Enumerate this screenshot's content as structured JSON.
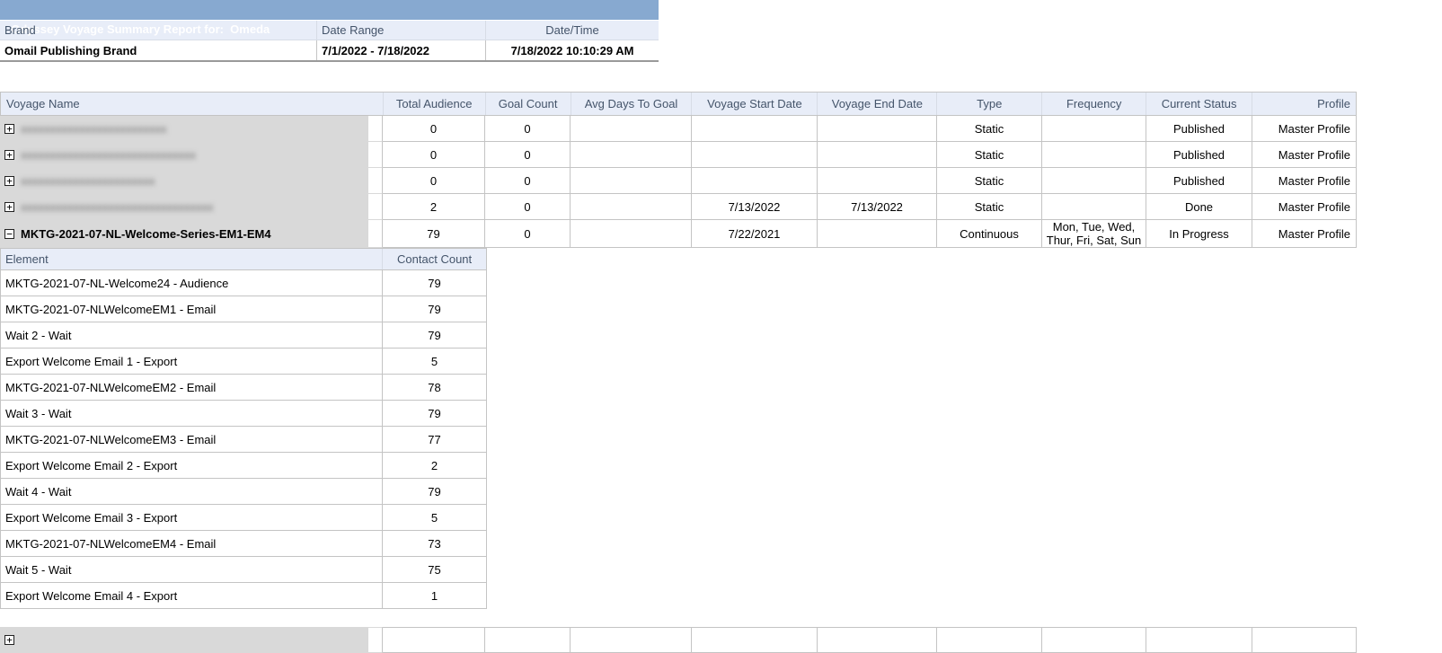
{
  "colors": {
    "title_bar": "#87A9D0",
    "header_background": "#E8EDF8",
    "header_text": "#44546A",
    "cell_border": "#C4C4C4",
    "redaction_gray": "#D9D9D9"
  },
  "report": {
    "title": "Odyssey Voyage Summary Report for:  Omeda",
    "brand_table": {
      "headers": [
        "Brand",
        "Date Range",
        "Date/Time"
      ],
      "row": {
        "brand": "Omail Publishing Brand",
        "date_range": "7/1/2022 - 7/18/2022",
        "date_time": "7/18/2022 10:10:29 AM"
      }
    },
    "voyage_table": {
      "headers": [
        "Voyage Name",
        "Total Audience",
        "Goal Count",
        "Avg Days To Goal",
        "Voyage Start Date",
        "Voyage End Date",
        "Type",
        "Frequency",
        "Current Status",
        "Profile"
      ],
      "rows": [
        {
          "name": "xxxxxxxxxxxxxxxxxxxxxxxxx",
          "redacted": true,
          "expand_state": "collapsed",
          "expand_glyph": "+",
          "total_audience": "0",
          "goal_count": "0",
          "avg_days_to_goal": "",
          "voyage_start_date": "",
          "voyage_end_date": "",
          "type": "Static",
          "frequency": "",
          "current_status": "Published",
          "profile": "Master Profile"
        },
        {
          "name": "xxxxxxxxxxxxxxxxxxxxxxxxxxxxxx",
          "redacted": true,
          "expand_state": "collapsed",
          "expand_glyph": "+",
          "total_audience": "0",
          "goal_count": "0",
          "avg_days_to_goal": "",
          "voyage_start_date": "",
          "voyage_end_date": "",
          "type": "Static",
          "frequency": "",
          "current_status": "Published",
          "profile": "Master Profile"
        },
        {
          "name": "xxxxxxxxxxxxxxxxxxxxxxx",
          "redacted": true,
          "expand_state": "collapsed",
          "expand_glyph": "+",
          "total_audience": "0",
          "goal_count": "0",
          "avg_days_to_goal": "",
          "voyage_start_date": "",
          "voyage_end_date": "",
          "type": "Static",
          "frequency": "",
          "current_status": "Published",
          "profile": "Master Profile"
        },
        {
          "name": "xxxxxxxxxxxxxxxxxxxxxxxxxxxxxxxxx",
          "redacted": true,
          "expand_state": "collapsed",
          "expand_glyph": "+",
          "total_audience": "2",
          "goal_count": "0",
          "avg_days_to_goal": "",
          "voyage_start_date": "7/13/2022",
          "voyage_end_date": "7/13/2022",
          "type": "Static",
          "frequency": "",
          "current_status": "Done",
          "profile": "Master Profile"
        },
        {
          "name": "MKTG-2021-07-NL-Welcome-Series-EM1-EM4",
          "redacted": false,
          "expand_state": "expanded",
          "expand_glyph": "−",
          "total_audience": "79",
          "goal_count": "0",
          "avg_days_to_goal": "",
          "voyage_start_date": "7/22/2021",
          "voyage_end_date": "",
          "type": "Continuous",
          "frequency": "Mon, Tue, Wed, Thur, Fri, Sat, Sun",
          "current_status": "In Progress",
          "profile": "Master Profile"
        }
      ],
      "partial_next_row": {
        "expand_glyph": "+",
        "redacted": true
      }
    },
    "element_table": {
      "headers": [
        "Element",
        "Contact Count"
      ],
      "rows": [
        {
          "element": "MKTG-2021-07-NL-Welcome24 - Audience",
          "contact_count": "79"
        },
        {
          "element": "MKTG-2021-07-NLWelcomeEM1 - Email",
          "contact_count": "79"
        },
        {
          "element": "Wait 2 - Wait",
          "contact_count": "79"
        },
        {
          "element": "Export Welcome Email 1 - Export",
          "contact_count": "5"
        },
        {
          "element": "MKTG-2021-07-NLWelcomeEM2 - Email",
          "contact_count": "78"
        },
        {
          "element": "Wait 3 - Wait",
          "contact_count": "79"
        },
        {
          "element": "MKTG-2021-07-NLWelcomeEM3 - Email",
          "contact_count": "77"
        },
        {
          "element": "Export Welcome Email 2 - Export",
          "contact_count": "2"
        },
        {
          "element": "Wait 4 - Wait",
          "contact_count": "79"
        },
        {
          "element": "Export Welcome Email 3 - Export",
          "contact_count": "5"
        },
        {
          "element": "MKTG-2021-07-NLWelcomeEM4 - Email",
          "contact_count": "73"
        },
        {
          "element": "Wait 5 - Wait",
          "contact_count": "75"
        },
        {
          "element": "Export Welcome Email 4 - Export",
          "contact_count": "1"
        }
      ]
    }
  }
}
